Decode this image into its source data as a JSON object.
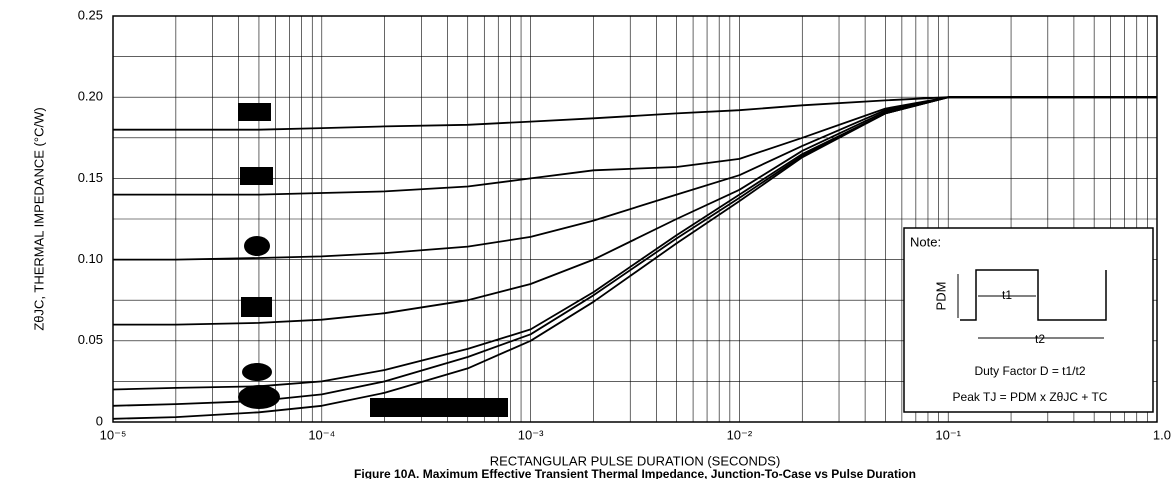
{
  "chart_data": {
    "type": "line",
    "title": "Figure 10A. Maximum Effective Transient Thermal Impedance, Junction-To-Case vs Pulse Duration",
    "x_label": "RECTANGULAR PULSE DURATION (SECONDS)",
    "y_label": "ZθJC, THERMAL IMPEDANCE (°C/W)",
    "x_scale": "log",
    "grid": true,
    "x": [
      1e-05,
      2e-05,
      5e-05,
      0.0001,
      0.0002,
      0.0005,
      0.001,
      0.002,
      0.005,
      0.01,
      0.02,
      0.05,
      0.1,
      1
    ],
    "series": [
      {
        "color": "#000000",
        "values": [
          0.18,
          0.18,
          0.18,
          0.181,
          0.182,
          0.183,
          0.185,
          0.187,
          0.19,
          0.192,
          0.195,
          0.198,
          0.2,
          0.2
        ]
      },
      {
        "color": "#000000",
        "values": [
          0.14,
          0.14,
          0.14,
          0.141,
          0.142,
          0.145,
          0.15,
          0.155,
          0.157,
          0.162,
          0.175,
          0.193,
          0.2,
          0.2
        ]
      },
      {
        "color": "#000000",
        "values": [
          0.1,
          0.1,
          0.101,
          0.102,
          0.104,
          0.108,
          0.114,
          0.124,
          0.14,
          0.152,
          0.17,
          0.192,
          0.2,
          0.2
        ]
      },
      {
        "color": "#000000",
        "values": [
          0.06,
          0.06,
          0.061,
          0.063,
          0.067,
          0.075,
          0.085,
          0.1,
          0.125,
          0.143,
          0.167,
          0.191,
          0.2,
          0.2
        ]
      },
      {
        "color": "#000000",
        "values": [
          0.02,
          0.021,
          0.022,
          0.025,
          0.032,
          0.045,
          0.057,
          0.08,
          0.115,
          0.14,
          0.165,
          0.19,
          0.2,
          0.2
        ]
      },
      {
        "color": "#000000",
        "values": [
          0.01,
          0.011,
          0.013,
          0.017,
          0.025,
          0.04,
          0.054,
          0.078,
          0.113,
          0.138,
          0.164,
          0.19,
          0.2,
          0.2
        ]
      },
      {
        "color": "#000000",
        "values": [
          0.002,
          0.003,
          0.006,
          0.01,
          0.018,
          0.033,
          0.05,
          0.074,
          0.11,
          0.136,
          0.163,
          0.19,
          0.2,
          0.2
        ]
      }
    ],
    "xlim": [
      1e-05,
      1
    ],
    "xticks": [
      {
        "value": 1e-05,
        "label": "10⁻⁵"
      },
      {
        "value": 0.0001,
        "label": "10⁻⁴"
      },
      {
        "value": 0.001,
        "label": "10⁻³"
      },
      {
        "value": 0.01,
        "label": "10⁻²"
      },
      {
        "value": 0.1,
        "label": "10⁻¹"
      },
      {
        "value": 1,
        "label": "1.0"
      }
    ],
    "ylim": [
      0,
      0.25
    ],
    "yticks": [
      0,
      0.05,
      {
        "value": 0.1,
        "label": "0.10"
      },
      0.15,
      {
        "value": 0.2,
        "label": "0.20"
      },
      0.25
    ],
    "yminor": [
      0.025,
      0.075,
      0.125,
      0.175,
      0.225
    ],
    "note": {
      "title": "Note:",
      "pdm": "PDM",
      "t1": "t1",
      "t2": "t2",
      "duty": "Duty Factor  D = t1/t2",
      "peak": "Peak TJ = PDM x ZθJC + TC"
    }
  }
}
